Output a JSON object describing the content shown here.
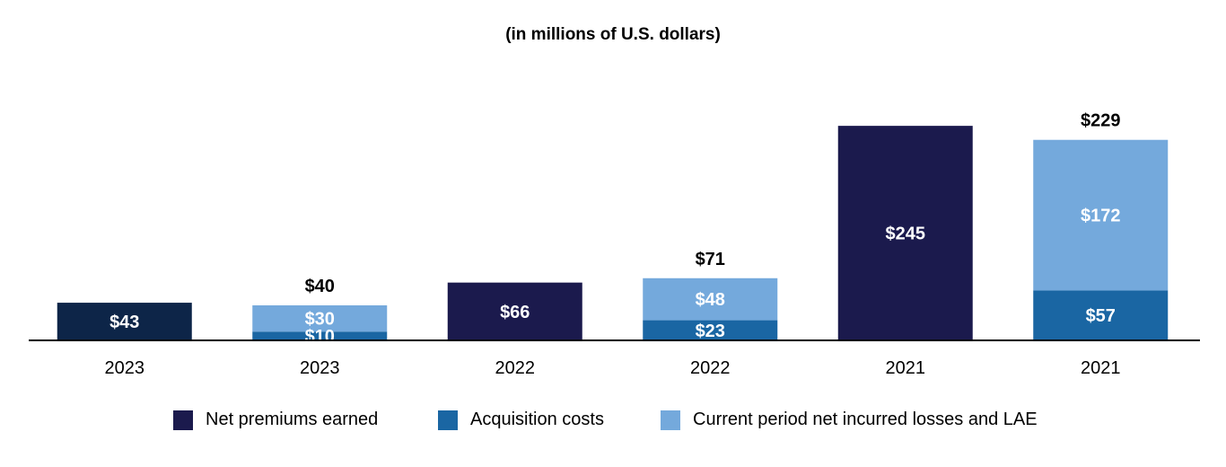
{
  "chart_data": {
    "type": "bar",
    "title": "(in millions of U.S. dollars)",
    "categories": [
      "2023",
      "2023",
      "2022",
      "2022",
      "2021",
      "2021"
    ],
    "series": [
      {
        "name": "Net premiums earned",
        "color": "#1b1a4d",
        "values": [
          43,
          null,
          66,
          null,
          245,
          null
        ],
        "labels": [
          "$43",
          null,
          "$66",
          null,
          "$245",
          null
        ]
      },
      {
        "name": "Acquisition costs",
        "color": "#1a66a3",
        "values": [
          null,
          10,
          null,
          23,
          null,
          57
        ],
        "labels": [
          null,
          "$10",
          null,
          "$23",
          null,
          "$57"
        ]
      },
      {
        "name": "Current period net incurred losses and LAE",
        "color": "#74a9dc",
        "values": [
          null,
          30,
          null,
          48,
          null,
          172
        ],
        "labels": [
          null,
          "$30",
          null,
          "$48",
          null,
          "$172"
        ]
      }
    ],
    "first_bar_color": "#0d2548",
    "totals": [
      null,
      "$40",
      null,
      "$71",
      null,
      "$229"
    ],
    "ylim": [
      0,
      250
    ],
    "xlabel": "",
    "ylabel": "",
    "legend_position": "bottom"
  }
}
